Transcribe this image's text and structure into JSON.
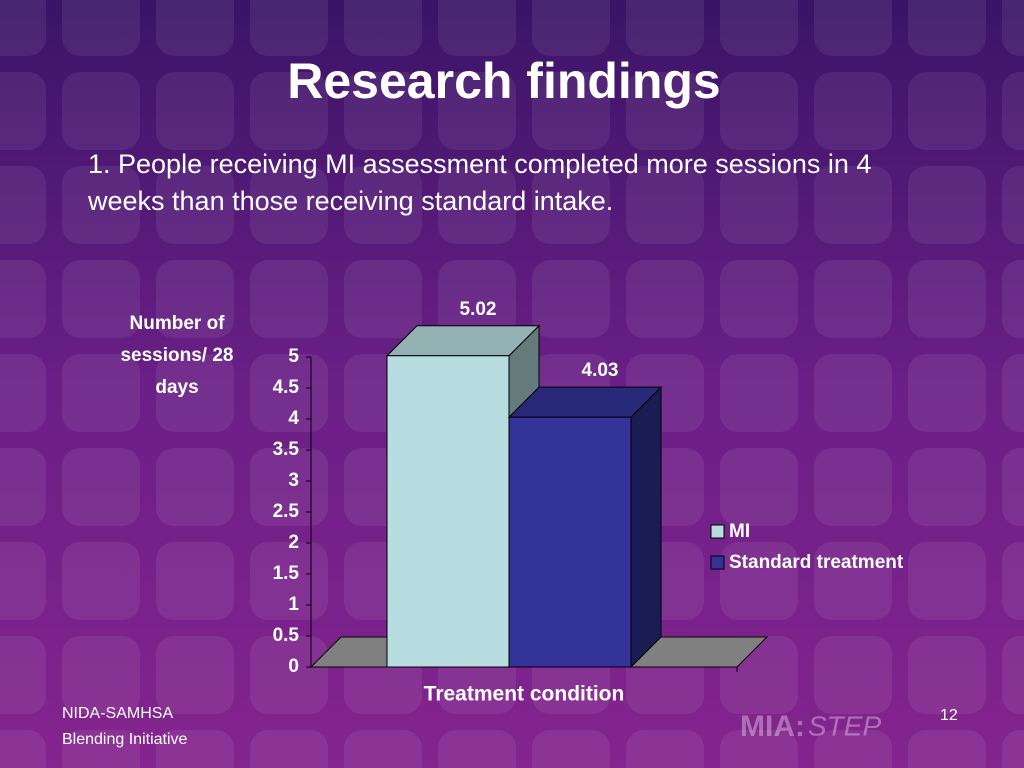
{
  "slide": {
    "title": "Research findings",
    "bullet": "1. People receiving MI assessment completed more sessions in 4 weeks than those receiving standard intake.",
    "footer": [
      "NIDA-SAMHSA",
      "Blending Initiative"
    ],
    "page_number": "12",
    "logo": [
      "MIA:",
      "STEP"
    ]
  },
  "chart_data": {
    "type": "bar",
    "categories": [
      null
    ],
    "series": [
      {
        "name": "MI",
        "color": "#b8dde0",
        "values": [
          5.02
        ]
      },
      {
        "name": "Standard treatment",
        "color": "#333399",
        "values": [
          4.03
        ]
      }
    ],
    "xlabel": "Treatment condition",
    "ylabel": "Number of sessions/ 28 days",
    "ylim": [
      0,
      5
    ],
    "yticks": [
      0,
      0.5,
      1,
      1.5,
      2,
      2.5,
      3,
      3.5,
      4,
      4.5,
      5
    ],
    "legend": "right"
  }
}
